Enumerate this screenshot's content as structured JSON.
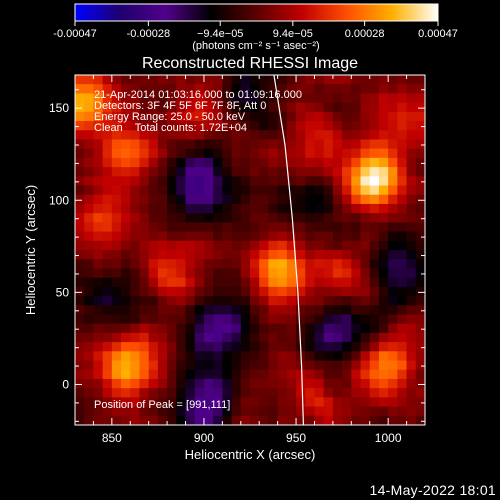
{
  "chart_data": {
    "type": "heatmap",
    "title": "Reconstructed RHESSI Image",
    "xlabel": "Heliocentric X (arcsec)",
    "ylabel": "Heliocentric Y (arcsec)",
    "xlim": [
      830,
      1020
    ],
    "ylim": [
      -22,
      168
    ],
    "x_ticks": [
      850,
      900,
      950,
      1000
    ],
    "y_ticks": [
      0,
      50,
      100,
      150
    ],
    "colorbar": {
      "range": [
        -0.00047,
        0.00047
      ],
      "tick_values": [
        -0.00047,
        -0.00028,
        -9.4e-05,
        9.4e-05,
        0.00028,
        0.00047
      ],
      "tick_labels": [
        "-0.00047",
        "-0.00028",
        "−9.4e−05",
        "9.4e−05",
        "0.00028",
        "0.00047"
      ],
      "unit_label": "(photons cm⁻² s⁻¹ asec⁻²)",
      "colormap": [
        "#0000ff",
        "#1e006e",
        "#50008a",
        "#000000",
        "#5a0000",
        "#c00000",
        "#ff5000",
        "#ffb000",
        "#ffffff"
      ]
    },
    "annotations": [
      "21-Apr-2014 01:03:16.000 to 01:09:16.000",
      "Detectors: 3F 4F 5F 6F 7F 8F, Att 0",
      "Energy Range: 25.0 - 50.0 keV",
      "Clean    Total counts: 1.72E+04"
    ],
    "peak_label": "Position of Peak = [991,111]",
    "peak_position": [
      991,
      111
    ],
    "sources": [
      {
        "x": 991,
        "y": 111,
        "peak": 1.0
      },
      {
        "x": 941,
        "y": 62,
        "peak": 0.78
      },
      {
        "x": 860,
        "y": 10,
        "peak": 0.75
      },
      {
        "x": 998,
        "y": 10,
        "peak": 0.62
      },
      {
        "x": 836,
        "y": 152,
        "peak": 0.72
      },
      {
        "x": 858,
        "y": 122,
        "peak": 0.5
      },
      {
        "x": 955,
        "y": 135,
        "peak": 0.35
      },
      {
        "x": 900,
        "y": 150,
        "peak": 0.3
      },
      {
        "x": 880,
        "y": 60,
        "peak": 0.35
      },
      {
        "x": 975,
        "y": 60,
        "peak": 0.3
      },
      {
        "x": 845,
        "y": 85,
        "peak": 0.3
      },
      {
        "x": 960,
        "y": -10,
        "peak": 0.25
      },
      {
        "x": 1013,
        "y": 145,
        "peak": 0.3
      }
    ],
    "negative_regions": [
      {
        "x": 898,
        "y": 107,
        "depth": 0.6
      },
      {
        "x": 908,
        "y": 30,
        "depth": 0.55
      },
      {
        "x": 900,
        "y": -8,
        "depth": 0.5
      },
      {
        "x": 975,
        "y": 28,
        "depth": 0.45
      },
      {
        "x": 1005,
        "y": 65,
        "depth": 0.4
      },
      {
        "x": 925,
        "y": 155,
        "depth": 0.35
      },
      {
        "x": 960,
        "y": 100,
        "depth": 0.3
      },
      {
        "x": 850,
        "y": 45,
        "depth": 0.3
      }
    ],
    "limb_curve": [
      [
        938,
        168
      ],
      [
        944,
        130
      ],
      [
        948,
        90
      ],
      [
        951,
        50
      ],
      [
        953,
        10
      ],
      [
        954,
        -22
      ]
    ]
  },
  "footer": {
    "timestamp": "14-May-2022 18:01"
  }
}
